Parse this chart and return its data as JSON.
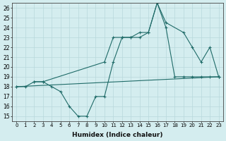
{
  "xlabel": "Humidex (Indice chaleur)",
  "bg_color": "#d4edef",
  "grid_color": "#b8d8db",
  "line_color": "#1f6b68",
  "xlim": [
    -0.5,
    23.5
  ],
  "ylim": [
    14.5,
    26.5
  ],
  "xticks": [
    0,
    1,
    2,
    3,
    4,
    5,
    6,
    7,
    8,
    9,
    10,
    11,
    12,
    13,
    14,
    15,
    16,
    17,
    18,
    19,
    20,
    21,
    22,
    23
  ],
  "yticks": [
    15,
    16,
    17,
    18,
    19,
    20,
    21,
    22,
    23,
    24,
    25,
    26
  ],
  "line1_x": [
    0,
    1,
    2,
    3,
    4,
    5,
    6,
    7,
    8,
    9,
    10,
    11,
    12,
    13,
    14,
    15,
    16,
    17,
    18,
    19,
    20,
    21,
    22,
    23
  ],
  "line1_y": [
    18,
    18,
    18.5,
    18.5,
    18,
    17.5,
    16,
    15,
    15,
    17,
    17,
    20.5,
    23,
    23,
    23,
    23.5,
    26.5,
    24,
    19,
    19,
    19,
    19,
    19,
    19
  ],
  "line2_x": [
    2,
    3,
    10,
    11,
    12,
    13,
    14,
    15,
    16,
    17,
    19,
    20,
    21,
    22,
    23
  ],
  "line2_y": [
    18.5,
    18.5,
    20.5,
    23,
    23,
    23,
    23.5,
    23.5,
    26.5,
    24.5,
    23.5,
    22,
    20.5,
    22,
    19
  ],
  "line3_x": [
    0,
    23
  ],
  "line3_y": [
    18,
    19
  ]
}
